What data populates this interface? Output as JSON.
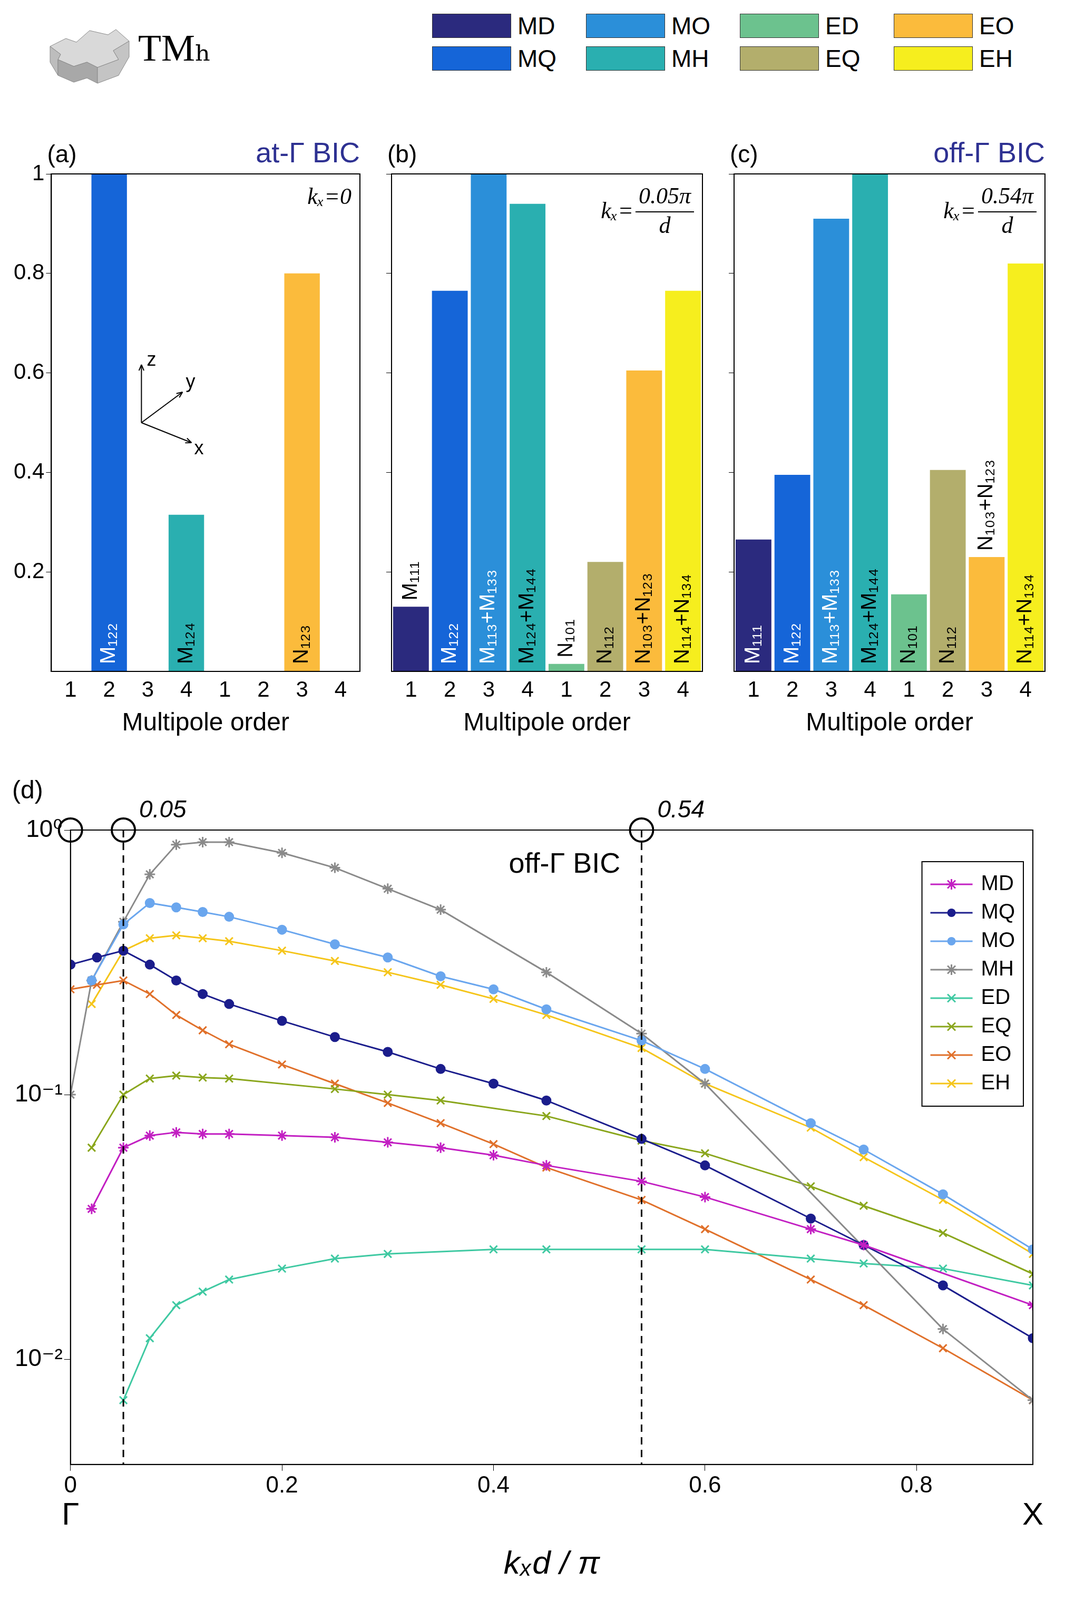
{
  "header": {
    "title": "TMₕ",
    "legend": [
      {
        "name": "MD",
        "color": "#2b2a7e"
      },
      {
        "name": "MQ",
        "color": "#1565d8"
      },
      {
        "name": "MO",
        "color": "#2b8fd9"
      },
      {
        "name": "MH",
        "color": "#2aafb0"
      },
      {
        "name": "ED",
        "color": "#6cc28e"
      },
      {
        "name": "EQ",
        "color": "#b3ae6c"
      },
      {
        "name": "EO",
        "color": "#fbbb3c"
      },
      {
        "name": "EH",
        "color": "#f6ee1e"
      }
    ]
  },
  "chart_data": [
    {
      "type": "bar",
      "panel": "(a)",
      "title": "at-Γ BIC",
      "k_label": {
        "lhs": "kₓ=",
        "num": "0"
      },
      "categories": [
        "1",
        "2",
        "3",
        "4",
        "1",
        "2",
        "3",
        "4"
      ],
      "values": [
        0,
        1.0,
        0,
        0.315,
        0,
        0,
        0.8,
        0
      ],
      "colors": [
        "#2b2a7e",
        "#1565d8",
        "#2b8fd9",
        "#2aafb0",
        "#6cc28e",
        "#b3ae6c",
        "#fbbb3c",
        "#f6ee1e"
      ],
      "bar_labels": [
        null,
        "M₁₂₂",
        null,
        "M₁₂₄",
        null,
        null,
        "N₁₂₃",
        null
      ],
      "x_label": "Multipole order",
      "ylim": [
        0,
        1
      ],
      "yticks": [
        0.2,
        0.4,
        0.6,
        0.8,
        1
      ],
      "grid": false,
      "axis_icon_labels": [
        "x",
        "y",
        "z"
      ]
    },
    {
      "type": "bar",
      "panel": "(b)",
      "k_label": {
        "lhs": "kₓ=",
        "num": "0.05π",
        "den": "d"
      },
      "categories": [
        "1",
        "2",
        "3",
        "4",
        "1",
        "2",
        "3",
        "4"
      ],
      "values": [
        0.13,
        0.765,
        1.0,
        0.94,
        0.015,
        0.22,
        0.605,
        0.765
      ],
      "colors": [
        "#2b2a7e",
        "#1565d8",
        "#2b8fd9",
        "#2aafb0",
        "#6cc28e",
        "#b3ae6c",
        "#fbbb3c",
        "#f6ee1e"
      ],
      "bar_labels": [
        "M₁₁₁",
        "M₁₂₂",
        "M₁₁₃+M₁₃₃",
        "M₁₂₄+M₁₄₄",
        "N₁₀₁",
        "N₁₁₂",
        "N₁₀₃+N₁₂₃",
        "N₁₁₄+N₁₃₄"
      ],
      "x_label": "Multipole order",
      "ylim": [
        0,
        1
      ],
      "yticks": [
        0.2,
        0.4,
        0.6,
        0.8,
        1
      ],
      "grid": false,
      "tick_labels": "x"
    },
    {
      "type": "bar",
      "panel": "(c)",
      "title": "off-Γ BIC",
      "k_label": {
        "lhs": "kₓ=",
        "num": "0.54π",
        "den": "d"
      },
      "categories": [
        "1",
        "2",
        "3",
        "4",
        "1",
        "2",
        "3",
        "4"
      ],
      "values": [
        0.265,
        0.395,
        0.91,
        1.0,
        0.155,
        0.405,
        0.23,
        0.82
      ],
      "colors": [
        "#2b2a7e",
        "#1565d8",
        "#2b8fd9",
        "#2aafb0",
        "#6cc28e",
        "#b3ae6c",
        "#fbbb3c",
        "#f6ee1e"
      ],
      "bar_labels": [
        "M₁₁₁",
        "M₁₂₂",
        "M₁₁₃+M₁₃₃",
        "M₁₂₄+M₁₄₄",
        "N₁₀₁",
        "N₁₁₂",
        "N₁₀₃+N₁₂₃",
        "N₁₁₄+N₁₃₄"
      ],
      "x_label": "Multipole order",
      "ylim": [
        0,
        1
      ],
      "yticks": [
        0.2,
        0.4,
        0.6,
        0.8,
        1
      ],
      "grid": false,
      "tick_labels": "x"
    },
    {
      "type": "line",
      "panel": "(d)",
      "log": "y",
      "x_label": "kₓd / π",
      "xlim": [
        0,
        0.91
      ],
      "xticks": [
        0,
        0.2,
        0.4,
        0.6,
        0.8
      ],
      "ylim": [
        0.004,
        1
      ],
      "yticks": [
        {
          "value": 0.01,
          "label": "10⁻²"
        },
        {
          "value": 0.1,
          "label": "10⁻¹"
        },
        {
          "value": 1,
          "label": "10⁰"
        }
      ],
      "grid": false,
      "legend": "upper right",
      "series": [
        {
          "name": "MD",
          "color": "#c21fc2",
          "marker": "star",
          "x": [
            0.02,
            0.05,
            0.075,
            0.1,
            0.125,
            0.15,
            0.2,
            0.25,
            0.3,
            0.35,
            0.4,
            0.45,
            0.54,
            0.6,
            0.7,
            0.75,
            0.91
          ],
          "values": [
            0.037,
            0.063,
            0.07,
            0.072,
            0.071,
            0.071,
            0.07,
            0.069,
            0.066,
            0.063,
            0.059,
            0.054,
            0.047,
            0.041,
            0.031,
            0.027,
            0.016
          ]
        },
        {
          "name": "MQ",
          "color": "#1b1d8c",
          "marker": "circle",
          "x": [
            0,
            0.025,
            0.05,
            0.075,
            0.1,
            0.125,
            0.15,
            0.2,
            0.25,
            0.3,
            0.35,
            0.4,
            0.45,
            0.54,
            0.6,
            0.7,
            0.75,
            0.825,
            0.91
          ],
          "values": [
            0.31,
            0.33,
            0.35,
            0.31,
            0.27,
            0.24,
            0.22,
            0.19,
            0.165,
            0.145,
            0.125,
            0.11,
            0.095,
            0.068,
            0.054,
            0.034,
            0.027,
            0.019,
            0.012
          ]
        },
        {
          "name": "MO",
          "color": "#6aa6ee",
          "marker": "circle",
          "x": [
            0.02,
            0.05,
            0.075,
            0.1,
            0.125,
            0.15,
            0.2,
            0.25,
            0.3,
            0.35,
            0.4,
            0.45,
            0.54,
            0.6,
            0.7,
            0.75,
            0.825,
            0.91
          ],
          "values": [
            0.27,
            0.44,
            0.53,
            0.51,
            0.49,
            0.47,
            0.42,
            0.37,
            0.33,
            0.28,
            0.25,
            0.21,
            0.16,
            0.125,
            0.078,
            0.062,
            0.042,
            0.026
          ]
        },
        {
          "name": "MH",
          "color": "#8a8a8a",
          "marker": "star",
          "x": [
            0,
            0.02,
            0.05,
            0.075,
            0.1,
            0.125,
            0.15,
            0.2,
            0.25,
            0.3,
            0.35,
            0.45,
            0.54,
            0.6,
            0.825,
            0.91
          ],
          "values": [
            0.1,
            0.27,
            0.45,
            0.68,
            0.88,
            0.9,
            0.9,
            0.82,
            0.72,
            0.6,
            0.5,
            0.29,
            0.17,
            0.11,
            0.013,
            0.007
          ]
        },
        {
          "name": "ED",
          "color": "#3fc9a2",
          "marker": "x",
          "x": [
            0.05,
            0.075,
            0.1,
            0.125,
            0.15,
            0.2,
            0.25,
            0.3,
            0.4,
            0.45,
            0.54,
            0.6,
            0.7,
            0.75,
            0.825,
            0.91
          ],
          "values": [
            0.007,
            0.012,
            0.016,
            0.018,
            0.02,
            0.022,
            0.024,
            0.025,
            0.026,
            0.026,
            0.026,
            0.026,
            0.024,
            0.023,
            0.022,
            0.019
          ]
        },
        {
          "name": "EQ",
          "color": "#8aa61c",
          "marker": "x",
          "x": [
            0.02,
            0.05,
            0.075,
            0.1,
            0.125,
            0.15,
            0.25,
            0.3,
            0.35,
            0.45,
            0.54,
            0.6,
            0.7,
            0.75,
            0.825,
            0.91
          ],
          "values": [
            0.063,
            0.1,
            0.115,
            0.118,
            0.116,
            0.115,
            0.105,
            0.1,
            0.095,
            0.083,
            0.067,
            0.06,
            0.045,
            0.038,
            0.03,
            0.021
          ]
        },
        {
          "name": "EO",
          "color": "#e0702a",
          "marker": "x",
          "x": [
            0,
            0.025,
            0.05,
            0.075,
            0.1,
            0.125,
            0.15,
            0.2,
            0.25,
            0.3,
            0.35,
            0.4,
            0.45,
            0.54,
            0.6,
            0.7,
            0.75,
            0.825,
            0.91
          ],
          "values": [
            0.25,
            0.26,
            0.27,
            0.24,
            0.2,
            0.175,
            0.155,
            0.13,
            0.11,
            0.093,
            0.078,
            0.065,
            0.053,
            0.04,
            0.031,
            0.02,
            0.016,
            0.011,
            0.007
          ]
        },
        {
          "name": "EH",
          "color": "#f5c51a",
          "marker": "x",
          "x": [
            0.02,
            0.05,
            0.075,
            0.1,
            0.125,
            0.15,
            0.2,
            0.25,
            0.3,
            0.35,
            0.4,
            0.45,
            0.54,
            0.6,
            0.7,
            0.75,
            0.825,
            0.91
          ],
          "values": [
            0.22,
            0.35,
            0.39,
            0.4,
            0.39,
            0.38,
            0.35,
            0.32,
            0.29,
            0.26,
            0.23,
            0.2,
            0.15,
            0.11,
            0.075,
            0.058,
            0.04,
            0.025
          ]
        }
      ],
      "annotations": [
        {
          "text": "off-Γ BIC",
          "x": 0.52,
          "y": 0.74
        }
      ],
      "highlights": [
        {
          "x": 0
        },
        {
          "x": 0.05,
          "label": "0.05",
          "line_style": "dashed"
        },
        {
          "x": 0.54,
          "label": "0.54",
          "line_style": "dashed"
        }
      ],
      "axis_end_labels": [
        {
          "x": 0,
          "text": "Γ"
        },
        {
          "x": 0.91,
          "text": "X"
        }
      ]
    }
  ]
}
